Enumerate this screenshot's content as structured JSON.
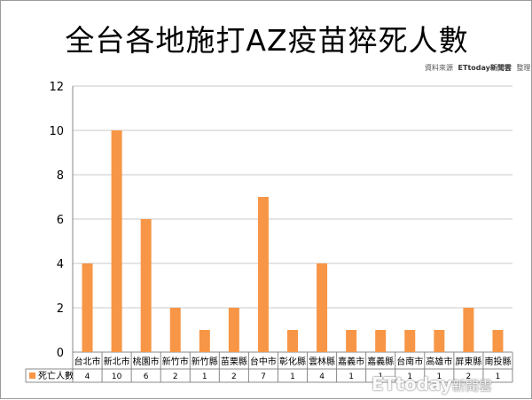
{
  "title": "全台各地施打AZ疫苗猝死人數",
  "source": {
    "prefix": "資料來源",
    "brand": "ETtoday新聞雲",
    "suffix": "整理"
  },
  "watermark": {
    "brand": "ETtoday",
    "sub": "新聞雲"
  },
  "chart_data": {
    "type": "bar",
    "categories": [
      "台北市",
      "新北市",
      "桃園市",
      "新竹市",
      "新竹縣",
      "苗栗縣",
      "台中市",
      "彰化縣",
      "雲林縣",
      "嘉義市",
      "嘉義縣",
      "台南市",
      "高雄市",
      "屏東縣",
      "南投縣"
    ],
    "series": [
      {
        "name": "死亡人數",
        "values": [
          4,
          10,
          6,
          2,
          1,
          2,
          7,
          1,
          4,
          1,
          1,
          1,
          1,
          2,
          1
        ],
        "color": "#f79646"
      }
    ],
    "ylim": [
      0,
      12
    ],
    "yticks": [
      0,
      2,
      4,
      6,
      8,
      10,
      12
    ],
    "grid": true,
    "legend": "bottom-left",
    "data_table": true
  }
}
